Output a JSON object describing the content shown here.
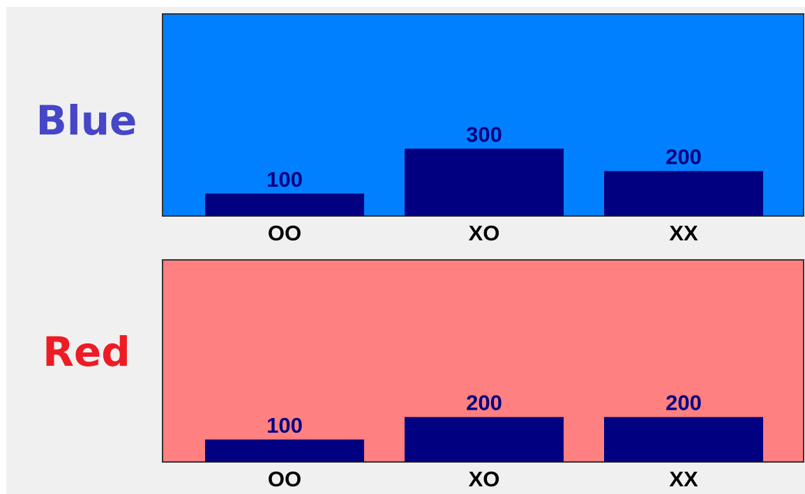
{
  "chart_data": [
    {
      "type": "bar",
      "title": "Blue",
      "categories": [
        "OO",
        "XO",
        "XX"
      ],
      "values": [
        100,
        300,
        200
      ],
      "ylim": [
        0,
        900
      ],
      "grid": false,
      "colors": {
        "title": "#4646c8",
        "background": "#0080ff",
        "bar": "#000080",
        "value_label": "#000080"
      }
    },
    {
      "type": "bar",
      "title": "Red",
      "categories": [
        "OO",
        "XO",
        "XX"
      ],
      "values": [
        100,
        200,
        200
      ],
      "ylim": [
        0,
        900
      ],
      "grid": false,
      "colors": {
        "title": "#ed1c24",
        "background": "#ff8080",
        "bar": "#000080",
        "value_label": "#000080"
      }
    }
  ]
}
